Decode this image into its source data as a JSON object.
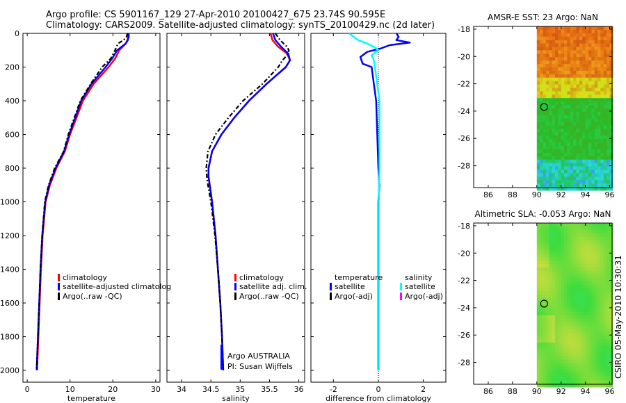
{
  "header": {
    "line1": "Argo profile: CS 5901167_129 27-Apr-2010 20100427_675 23.74S 90.595E",
    "line2": "Climatology: CARS2009. Satellite-adjusted climatology: synTS_20100429.nc (2d later)"
  },
  "side_label": "CSIRO 05-May-2010 10:30:31",
  "colors": {
    "clim": "#ff0000",
    "sat": "#0000ff",
    "argo": "#000000",
    "sal_sat": "#00ffff",
    "sal_argo": "#ff00ff"
  },
  "depth_ticks": [
    "0",
    "200",
    "400",
    "600",
    "800",
    "1000",
    "1200",
    "1400",
    "1600",
    "1800",
    "2000"
  ],
  "chart_data": [
    {
      "type": "line",
      "id": "temperature",
      "xlabel": "temperature",
      "xlim": [
        -1,
        31
      ],
      "ylim": [
        0,
        2070
      ],
      "y_reversed": true,
      "xticks": [
        "0",
        "10",
        "20",
        "30"
      ],
      "legend": [
        "climatology",
        "satellite-adjusted climatolog",
        "Argo(..raw -QC)"
      ],
      "series": [
        {
          "name": "climatology",
          "color": "#ff0000",
          "depth": [
            0,
            20,
            40,
            60,
            100,
            150,
            200,
            300,
            400,
            500,
            600,
            700,
            800,
            900,
            1000,
            1200,
            1400,
            1600,
            1800,
            2000
          ],
          "values": [
            23.6,
            23.6,
            23.4,
            23.0,
            21.5,
            20.5,
            19.0,
            15.5,
            13.0,
            11.5,
            10.0,
            8.8,
            6.8,
            5.3,
            4.3,
            3.6,
            3.2,
            2.9,
            2.6,
            2.3
          ]
        },
        {
          "name": "satellite-adjusted climatology",
          "color": "#0000ff",
          "depth": [
            0,
            20,
            40,
            60,
            100,
            150,
            200,
            300,
            400,
            500,
            600,
            700,
            800,
            900,
            1000,
            1200,
            1400,
            1600,
            1800,
            2000
          ],
          "values": [
            23.7,
            23.7,
            23.5,
            23.0,
            21.0,
            19.8,
            18.3,
            15.0,
            12.6,
            11.2,
            9.8,
            8.6,
            6.6,
            5.1,
            4.2,
            3.5,
            3.1,
            2.8,
            2.5,
            2.2
          ]
        },
        {
          "name": "Argo (raw -QC)",
          "color": "#000000",
          "dashed": true,
          "depth": [
            0,
            20,
            40,
            60,
            100,
            150,
            200,
            300,
            400,
            500,
            600,
            700,
            800,
            900,
            1000,
            1200,
            1400,
            1600,
            1800,
            2000
          ],
          "values": [
            23.4,
            23.2,
            22.5,
            21.2,
            20.5,
            19.5,
            17.5,
            14.8,
            12.4,
            11.0,
            9.6,
            8.5,
            6.4,
            5.0,
            4.1,
            3.5,
            3.1,
            2.8,
            2.5,
            2.2
          ]
        }
      ]
    },
    {
      "type": "line",
      "id": "salinity",
      "xlabel": "salinity",
      "xlim": [
        33.75,
        36.1
      ],
      "ylim": [
        0,
        2070
      ],
      "y_reversed": true,
      "xticks": [
        "34",
        "34.5",
        "35",
        "35.5",
        "36"
      ],
      "legend": [
        "climatology",
        "satellite adj. clim.",
        "Argo(..raw -QC)"
      ],
      "annotation": [
        "Argo AUSTRALIA",
        "PI: Susan Wijffels"
      ],
      "series": [
        {
          "name": "climatology",
          "color": "#ff0000",
          "depth": [
            0,
            40,
            80,
            120,
            160,
            200,
            300,
            400,
            500,
            600,
            700,
            800,
            850,
            900,
            1000,
            1200,
            1400,
            1600,
            1800,
            2000
          ],
          "values": [
            35.52,
            35.55,
            35.65,
            35.8,
            35.85,
            35.78,
            35.45,
            35.15,
            34.9,
            34.68,
            34.52,
            34.46,
            34.46,
            34.48,
            34.52,
            34.58,
            34.62,
            34.66,
            34.69,
            34.71
          ]
        },
        {
          "name": "satellite adj. clim.",
          "color": "#0000ff",
          "depth": [
            0,
            40,
            80,
            120,
            160,
            200,
            300,
            400,
            500,
            600,
            700,
            800,
            850,
            900,
            1000,
            1200,
            1400,
            1600,
            1800,
            2000
          ],
          "values": [
            35.56,
            35.6,
            35.7,
            35.82,
            35.85,
            35.78,
            35.45,
            35.15,
            34.9,
            34.68,
            34.52,
            34.46,
            34.46,
            34.48,
            34.52,
            34.58,
            34.62,
            34.66,
            34.69,
            34.71
          ]
        },
        {
          "name": "Argo (raw -QC)",
          "color": "#000000",
          "dashed": true,
          "depth": [
            0,
            40,
            80,
            100,
            130,
            160,
            200,
            300,
            400,
            500,
            600,
            700,
            800,
            850,
            900,
            1000,
            1200,
            1400,
            1600,
            1800,
            2000
          ],
          "values": [
            35.6,
            35.68,
            35.8,
            35.83,
            35.8,
            35.72,
            35.65,
            35.38,
            35.05,
            34.8,
            34.58,
            34.45,
            34.42,
            34.43,
            34.45,
            34.5,
            34.57,
            34.62,
            34.66,
            34.69,
            34.71
          ]
        }
      ]
    },
    {
      "type": "line",
      "id": "difference",
      "xlabel": "difference from climatology",
      "xlim": [
        -3,
        3
      ],
      "ylim": [
        0,
        2070
      ],
      "y_reversed": true,
      "xticks": [
        "-2",
        "0",
        "2"
      ],
      "legend_temperature_title": "temperature",
      "legend_temperature": [
        "satellite",
        "Argo(-adj)"
      ],
      "legend_salinity_title": "salinity",
      "legend_salinity": [
        "satellite",
        "Argo(-adj)"
      ],
      "series": [
        {
          "name": "temperature satellite",
          "color": "#0000ff",
          "depth": [
            0,
            20,
            40,
            55,
            70,
            90,
            110,
            140,
            180,
            200,
            300,
            400,
            600,
            800,
            900,
            1000,
            1200,
            1400,
            1600,
            1800,
            2000
          ],
          "values": [
            0.8,
            0.9,
            0.8,
            1.4,
            0.5,
            0.1,
            -0.5,
            -0.8,
            -0.7,
            -0.3,
            -0.2,
            -0.1,
            -0.05,
            0.0,
            0.05,
            0.0,
            0.0,
            0.0,
            0.0,
            0.0,
            0.0
          ]
        },
        {
          "name": "salinity satellite",
          "color": "#00ffff",
          "depth": [
            0,
            20,
            40,
            60,
            80,
            100,
            130,
            160,
            200,
            300,
            400,
            600,
            800,
            1000,
            1200,
            1400,
            1600,
            1800,
            2000
          ],
          "values": [
            -1.3,
            -1.1,
            -0.9,
            -0.5,
            -0.2,
            0.0,
            -0.3,
            -0.2,
            -0.15,
            -0.05,
            0.05,
            0.05,
            0.05,
            0.02,
            0.02,
            0.02,
            0.02,
            0.02,
            0.02
          ]
        }
      ]
    },
    {
      "type": "heatmap",
      "id": "amsr-sst",
      "title": "AMSR-E SST: 23 Argo: NaN",
      "xticks": [
        "86",
        "88",
        "90",
        "92",
        "94",
        "96"
      ],
      "yticks": [
        "-18",
        "-20",
        "-22",
        "-24",
        "-26",
        "-28"
      ],
      "xlim": [
        84.8,
        96.2
      ],
      "ylim": [
        -29.6,
        -17.8
      ],
      "float_position": [
        90.6,
        -23.7
      ]
    },
    {
      "type": "heatmap",
      "id": "altimetric-sla",
      "title": "Altimetric SLA: -0.053 Argo: NaN",
      "xticks": [
        "86",
        "88",
        "90",
        "92",
        "94",
        "96"
      ],
      "yticks": [
        "-18",
        "-20",
        "-22",
        "-24",
        "-26",
        "-28"
      ],
      "xlim": [
        84.8,
        96.2
      ],
      "ylim": [
        -29.6,
        -17.8
      ],
      "float_position": [
        90.6,
        -23.7
      ]
    }
  ]
}
